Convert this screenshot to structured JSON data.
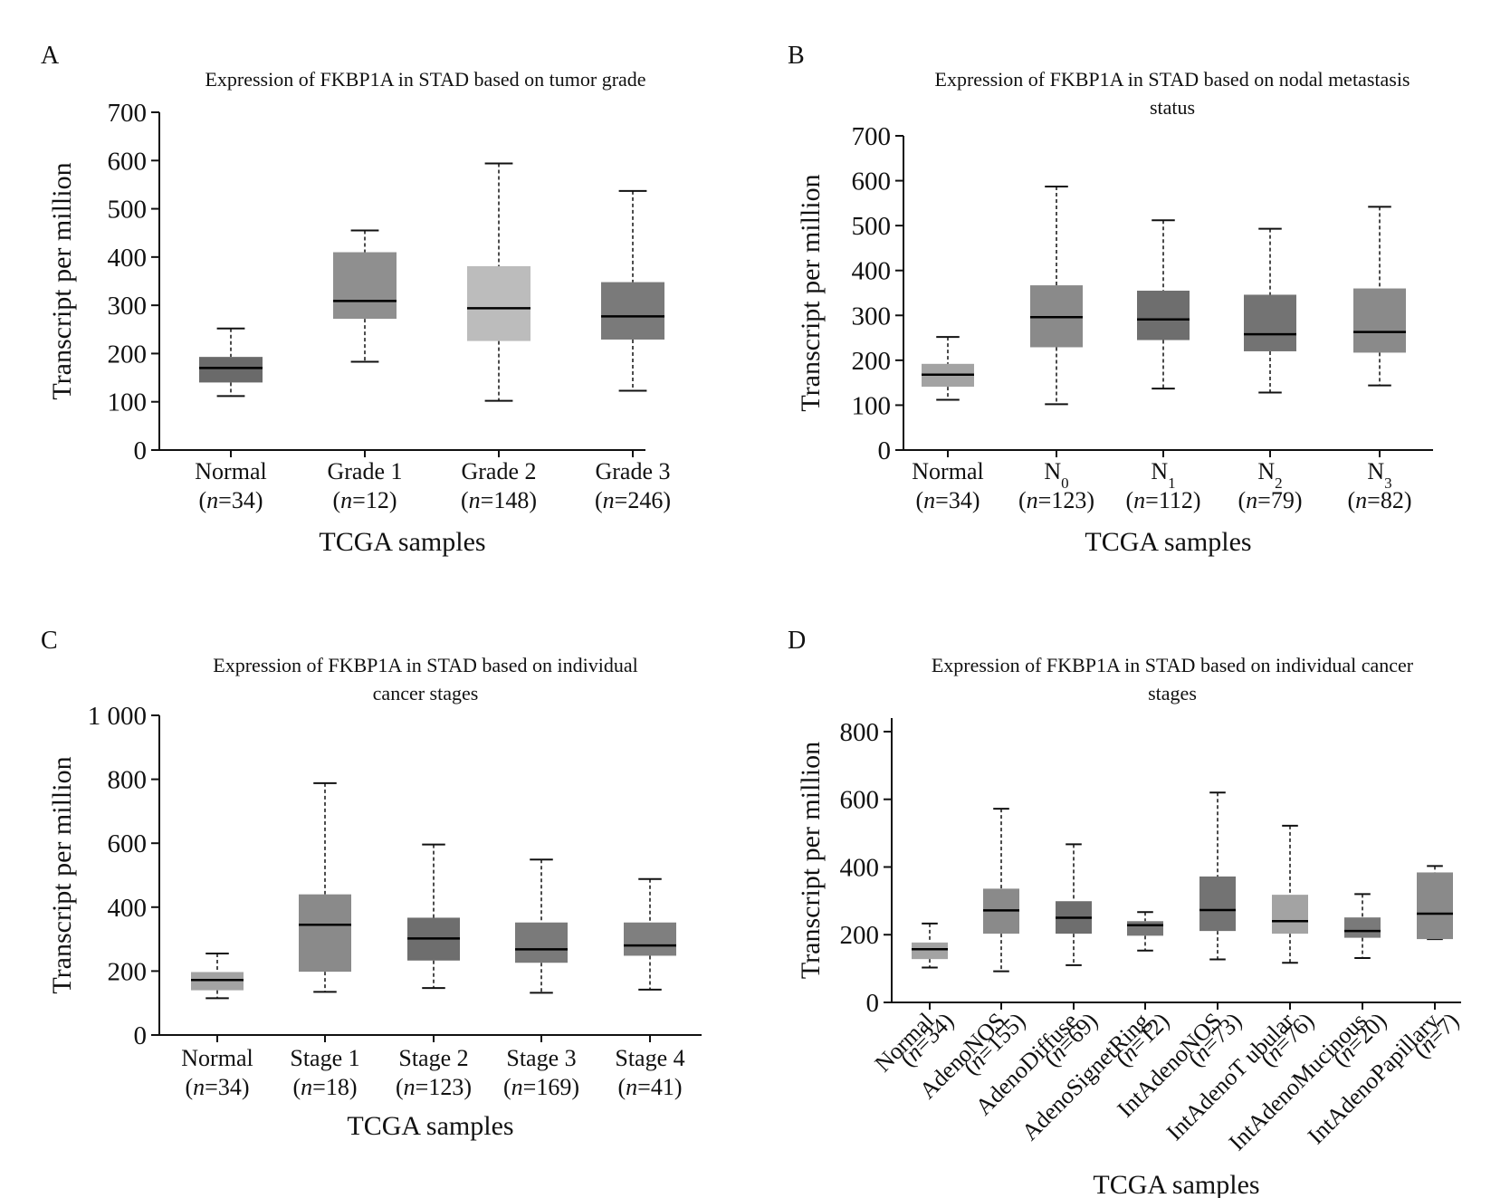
{
  "chart_data": [
    {
      "panel": "A",
      "type": "box",
      "title": "Expression of FKBP1A in STAD based on tumor grade",
      "ylabel": "Transcript per million",
      "xlabel": "TCGA samples",
      "ylim": [
        0,
        700
      ],
      "yticks": [
        0,
        100,
        200,
        300,
        400,
        500,
        600,
        700
      ],
      "ytick_labels": [
        "0",
        "100",
        "200",
        "300",
        "400",
        "500",
        "600",
        "700"
      ],
      "categories": [
        {
          "name": "Normal",
          "n": "34",
          "min": 112,
          "q1": 140,
          "median": 170,
          "q3": 193,
          "max": 252,
          "color": "#6a6a6a"
        },
        {
          "name": "Grade 1",
          "n": "12",
          "min": 183,
          "q1": 272,
          "median": 309,
          "q3": 410,
          "max": 455,
          "color": "#8f8f8f"
        },
        {
          "name": "Grade 2",
          "n": "148",
          "min": 102,
          "q1": 226,
          "median": 294,
          "q3": 381,
          "max": 594,
          "color": "#bcbcbc"
        },
        {
          "name": "Grade 3",
          "n": "246",
          "min": 123,
          "q1": 229,
          "median": 277,
          "q3": 348,
          "max": 537,
          "color": "#7a7a7a"
        }
      ]
    },
    {
      "panel": "B",
      "type": "box",
      "title": "Expression of FKBP1A in STAD based on nodal metastasis status",
      "title_lines": [
        "Expression of FKBP1A in STAD based on nodal metastasis",
        "status"
      ],
      "ylabel": "Transcript per million",
      "xlabel": "TCGA samples",
      "ylim": [
        0,
        700
      ],
      "yticks": [
        0,
        100,
        200,
        300,
        400,
        500,
        600,
        700
      ],
      "ytick_labels": [
        "0",
        "100",
        "200",
        "300",
        "400",
        "500",
        "600",
        "700"
      ],
      "categories": [
        {
          "name": "Normal",
          "n": "34",
          "min": 112,
          "q1": 141,
          "median": 168,
          "q3": 192,
          "max": 252,
          "color": "#a3a3a3"
        },
        {
          "name": "N",
          "sub": "0",
          "n": "123",
          "min": 102,
          "q1": 229,
          "median": 296,
          "q3": 367,
          "max": 587,
          "color": "#8a8a8a"
        },
        {
          "name": "N",
          "sub": "1",
          "n": "112",
          "min": 137,
          "q1": 245,
          "median": 291,
          "q3": 355,
          "max": 512,
          "color": "#6e6e6e"
        },
        {
          "name": "N",
          "sub": "2",
          "n": "79",
          "min": 128,
          "q1": 220,
          "median": 258,
          "q3": 346,
          "max": 493,
          "color": "#737373"
        },
        {
          "name": "N",
          "sub": "3",
          "n": "82",
          "min": 144,
          "q1": 217,
          "median": 263,
          "q3": 360,
          "max": 542,
          "color": "#8a8a8a"
        }
      ]
    },
    {
      "panel": "C",
      "type": "box",
      "title": "Expression of FKBP1A in STAD based on individual cancer stages",
      "title_lines": [
        "Expression of FKBP1A in STAD based on individual",
        "cancer stages"
      ],
      "ylabel": "Transcript per million",
      "xlabel": "TCGA samples",
      "ylim": [
        0,
        1000
      ],
      "yticks": [
        0,
        200,
        400,
        600,
        800,
        1000
      ],
      "ytick_labels": [
        "0",
        "200",
        "400",
        "600",
        "800",
        "1 000"
      ],
      "categories": [
        {
          "name": "Normal",
          "n": "34",
          "min": 115,
          "q1": 140,
          "median": 172,
          "q3": 197,
          "max": 255,
          "color": "#a3a3a3"
        },
        {
          "name": "Stage 1",
          "n": "18",
          "min": 135,
          "q1": 198,
          "median": 345,
          "q3": 440,
          "max": 788,
          "color": "#8a8a8a"
        },
        {
          "name": "Stage 2",
          "n": "123",
          "min": 147,
          "q1": 233,
          "median": 302,
          "q3": 367,
          "max": 596,
          "color": "#6e6e6e"
        },
        {
          "name": "Stage 3",
          "n": "169",
          "min": 132,
          "q1": 226,
          "median": 268,
          "q3": 352,
          "max": 549,
          "color": "#7a7a7a"
        },
        {
          "name": "Stage 4",
          "n": "41",
          "min": 142,
          "q1": 248,
          "median": 280,
          "q3": 352,
          "max": 488,
          "color": "#7f7f7f"
        }
      ]
    },
    {
      "panel": "D",
      "type": "box",
      "title": "Expression of FKBP1A in STAD based on individual cancer stages",
      "title_lines": [
        "Expression of FKBP1A in STAD based on individual cancer",
        "stages"
      ],
      "ylabel": "Transcript per million",
      "xlabel": "TCGA samples",
      "ylim": [
        0,
        840
      ],
      "yticks": [
        0,
        200,
        400,
        600,
        800
      ],
      "ytick_labels": [
        "0",
        "200",
        "400",
        "600",
        "800"
      ],
      "categories": [
        {
          "name": "Normal",
          "n": "34",
          "min": 103,
          "q1": 128,
          "median": 157,
          "q3": 177,
          "max": 233,
          "color": "#a3a3a3"
        },
        {
          "name": "AdenoNOS",
          "n": "155",
          "min": 92,
          "q1": 203,
          "median": 272,
          "q3": 336,
          "max": 572,
          "color": "#8a8a8a"
        },
        {
          "name": "AdenoDiffuse",
          "n": "69",
          "min": 110,
          "q1": 203,
          "median": 250,
          "q3": 299,
          "max": 467,
          "color": "#6e6e6e"
        },
        {
          "name": "AdenoSignetRing",
          "n": "12",
          "min": 153,
          "q1": 197,
          "median": 228,
          "q3": 240,
          "max": 267,
          "color": "#777777"
        },
        {
          "name": "IntAdenoNOS",
          "n": "73",
          "min": 127,
          "q1": 211,
          "median": 273,
          "q3": 372,
          "max": 620,
          "color": "#737373"
        },
        {
          "name": "IntAdenoT ubular",
          "n": "76",
          "min": 117,
          "q1": 203,
          "median": 240,
          "q3": 318,
          "max": 522,
          "color": "#a3a3a3"
        },
        {
          "name": "IntAdenoMucinous",
          "n": "20",
          "min": 131,
          "q1": 191,
          "median": 211,
          "q3": 251,
          "max": 320,
          "color": "#7a7a7a"
        },
        {
          "name": "IntAdenoPapillary",
          "n": "7",
          "min": 187,
          "q1": 187,
          "median": 262,
          "q3": 384,
          "max": 403,
          "color": "#8a8a8a"
        }
      ]
    }
  ]
}
